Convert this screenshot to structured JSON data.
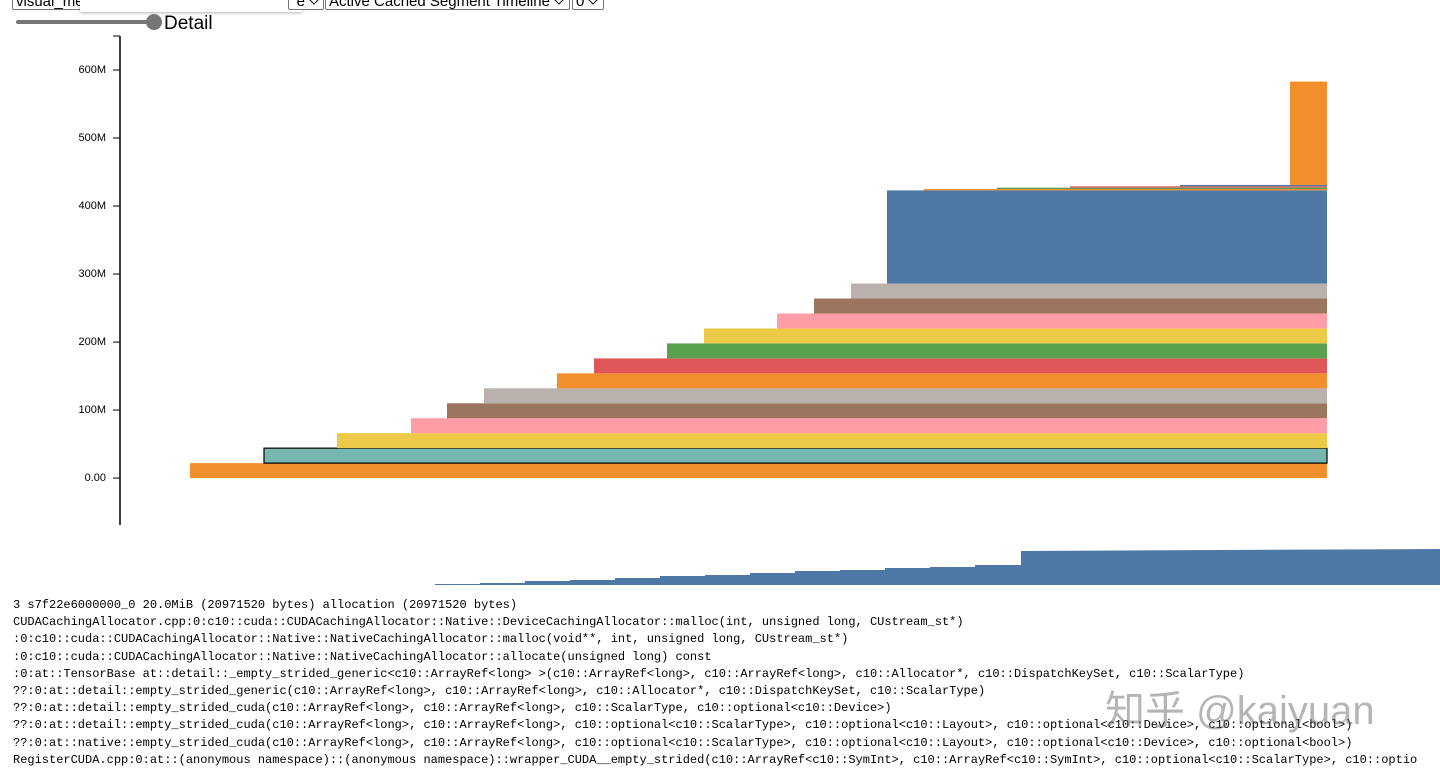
{
  "controls": {
    "file": "visual_me",
    "view_suffix": "e",
    "view": "Active Cached Segment Timeline",
    "device": "0",
    "slider_label": "Detail"
  },
  "chart_data": {
    "type": "stacked-timeline",
    "xlim": [
      0,
      1173
    ],
    "ylim": [
      -69,
      650
    ],
    "yticks": [
      {
        "value": 0,
        "label": "0.00"
      },
      {
        "value": 100,
        "label": "100M"
      },
      {
        "value": 200,
        "label": "200M"
      },
      {
        "value": 300,
        "label": "300M"
      },
      {
        "value": 400,
        "label": "400M"
      },
      {
        "value": 500,
        "label": "500M"
      },
      {
        "value": 600,
        "label": "600M"
      }
    ],
    "selected": 1,
    "segments": [
      {
        "start": 36,
        "size": 22,
        "color": "#f28e2b"
      },
      {
        "start": 110,
        "size": 22,
        "color": "#76b7b2"
      },
      {
        "start": 183,
        "size": 22,
        "color": "#edc948"
      },
      {
        "start": 257,
        "size": 22,
        "color": "#ff9da7"
      },
      {
        "start": 293,
        "size": 22,
        "color": "#9c755f"
      },
      {
        "start": 330,
        "size": 22,
        "color": "#bab0ac"
      },
      {
        "start": 403,
        "size": 22,
        "color": "#f28e2b"
      },
      {
        "start": 440,
        "size": 22,
        "color": "#e15759"
      },
      {
        "start": 513,
        "size": 22,
        "color": "#59a14f"
      },
      {
        "start": 550,
        "size": 22,
        "color": "#edc948"
      },
      {
        "start": 623,
        "size": 22,
        "color": "#ff9da7"
      },
      {
        "start": 660,
        "size": 22,
        "color": "#9c755f"
      },
      {
        "start": 697,
        "size": 22,
        "color": "#bab0ac"
      },
      {
        "start": 733,
        "size": 137,
        "color": "#4e79a7"
      },
      {
        "start": 770,
        "size": 2,
        "color": "#f28e2b"
      },
      {
        "start": 843,
        "size": 2,
        "color": "#59a14f"
      },
      {
        "start": 916,
        "size": 2,
        "color": "#e15759"
      },
      {
        "start": 1026,
        "size": 2,
        "color": "#4e79a7"
      },
      {
        "start": 1136,
        "size": 152,
        "color": "#f28e2b"
      }
    ]
  },
  "details": [
    "3 s7f22e6000000_0 20.0MiB (20971520 bytes) allocation (20971520 bytes)",
    "CUDACachingAllocator.cpp:0:c10::cuda::CUDACachingAllocator::Native::DeviceCachingAllocator::malloc(int, unsigned long, CUstream_st*)",
    ":0:c10::cuda::CUDACachingAllocator::Native::NativeCachingAllocator::malloc(void**, int, unsigned long, CUstream_st*)",
    ":0:c10::cuda::CUDACachingAllocator::Native::NativeCachingAllocator::allocate(unsigned long) const",
    ":0:at::TensorBase at::detail::_empty_strided_generic<c10::ArrayRef<long> >(c10::ArrayRef<long>, c10::ArrayRef<long>, c10::Allocator*, c10::DispatchKeySet, c10::ScalarType)",
    "??:0:at::detail::empty_strided_generic(c10::ArrayRef<long>, c10::ArrayRef<long>, c10::Allocator*, c10::DispatchKeySet, c10::ScalarType)",
    "??:0:at::detail::empty_strided_cuda(c10::ArrayRef<long>, c10::ArrayRef<long>, c10::ScalarType, c10::optional<c10::Device>)",
    "??:0:at::detail::empty_strided_cuda(c10::ArrayRef<long>, c10::ArrayRef<long>, c10::optional<c10::ScalarType>, c10::optional<c10::Layout>, c10::optional<c10::Device>, c10::optional<bool>)",
    "??:0:at::native::empty_strided_cuda(c10::ArrayRef<long>, c10::ArrayRef<long>, c10::optional<c10::ScalarType>, c10::optional<c10::Layout>, c10::optional<c10::Device>, c10::optional<bool>)",
    "RegisterCUDA.cpp:0:at::(anonymous namespace)::(anonymous namespace)::wrapper_CUDA__empty_strided(c10::ArrayRef<c10::SymInt>, c10::ArrayRef<c10::SymInt>, c10::optional<c10::ScalarType>, c10::optio"
  ],
  "watermark": "知乎 @kaiyuan"
}
